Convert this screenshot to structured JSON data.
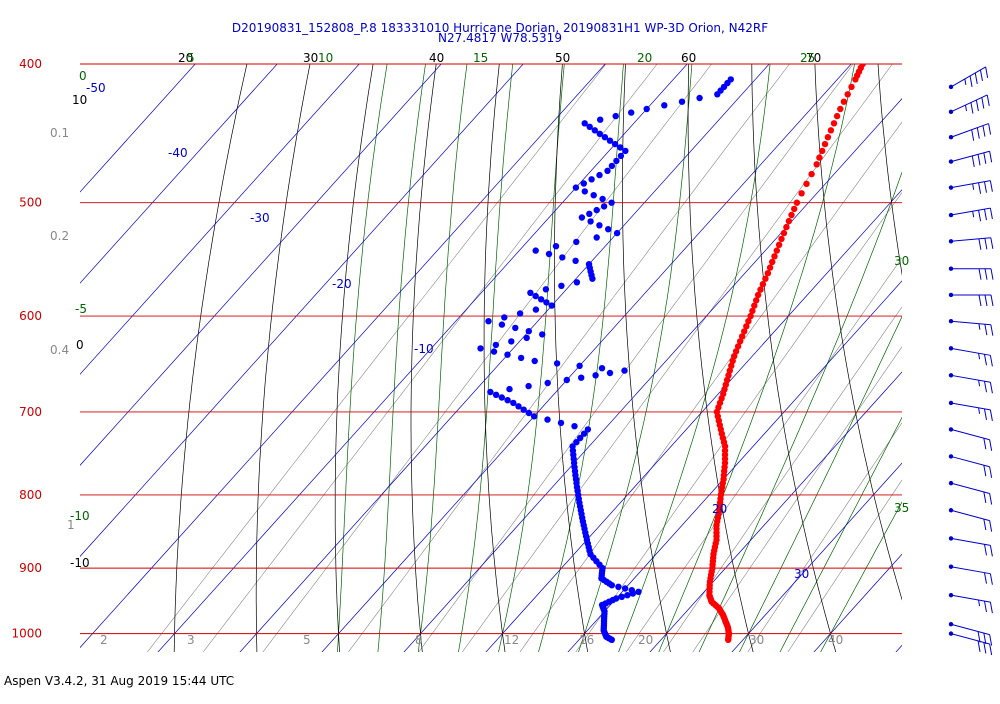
{
  "footer": "Aspen V3.4.2, 31 Aug 2019  15:44 UTC",
  "chart_data": {
    "type": "skew-t",
    "title": "D20190831_152808_P.8 183331010 Hurricane Dorian, 20190831H1 WP-3D Orion, N42RF",
    "subtitle": "N27.4817 W78.5319",
    "xlabel": "",
    "ylabel": "",
    "pressure_range_hPa": [
      400,
      1030
    ],
    "pressure_labels": [
      "400",
      "500",
      "600",
      "700",
      "800",
      "900",
      "1000"
    ],
    "pressure_levels_hPa": [
      400,
      500,
      600,
      700,
      800,
      900,
      1000
    ],
    "colors": {
      "isobar": "#cc0000",
      "isotherm": "#0000cc",
      "dry_adiabat": "#000000",
      "moist_adiabat": "#006600",
      "mixing_ratio": "#888888",
      "temperature": "#ff0000",
      "dewpoint": "#0000ff",
      "wind_barb": "#0000cc"
    },
    "isotherm_labels": [
      {
        "text": "-50",
        "value": -50
      },
      {
        "text": "-40",
        "value": -40
      },
      {
        "text": "-30",
        "value": -30
      },
      {
        "text": "-20",
        "value": -20
      },
      {
        "text": "-10",
        "value": -10
      },
      {
        "text": "20",
        "value": 20
      },
      {
        "text": "30",
        "value": 30
      }
    ],
    "dry_adiabat_top_labels": [
      "20",
      "30",
      "40",
      "50",
      "60",
      "70"
    ],
    "dry_adiabat_left_labels": [
      "10",
      "0",
      "-10"
    ],
    "moist_adiabat_top_labels": [
      "5",
      "10",
      "15",
      "20",
      "25"
    ],
    "moist_adiabat_left_labels": [
      "0",
      "-5",
      "-10"
    ],
    "moist_adiabat_right_labels": [
      "30",
      "35"
    ],
    "mixing_ratio_left_labels": [
      "0.1",
      "0.2",
      "0.4",
      "1"
    ],
    "mixing_ratio_bottom_labels": [
      "2",
      "3",
      "5",
      "8",
      "12",
      "16",
      "20",
      "30",
      "40"
    ],
    "series": [
      {
        "role": "temperature",
        "points": [
          [
            400,
            -18.6
          ],
          [
            410,
            -17.8
          ],
          [
            430,
            -16.4
          ],
          [
            450,
            -14.8
          ],
          [
            470,
            -13.2
          ],
          [
            500,
            -11.4
          ],
          [
            520,
            -10.0
          ],
          [
            540,
            -8.6
          ],
          [
            560,
            -7.2
          ],
          [
            580,
            -6.0
          ],
          [
            600,
            -4.6
          ],
          [
            620,
            -3.4
          ],
          [
            640,
            -2.2
          ],
          [
            660,
            -0.8
          ],
          [
            680,
            0.6
          ],
          [
            700,
            1.8
          ],
          [
            720,
            4.2
          ],
          [
            740,
            6.6
          ],
          [
            760,
            8.4
          ],
          [
            780,
            10.0
          ],
          [
            800,
            11.4
          ],
          [
            820,
            12.9
          ],
          [
            840,
            14.2
          ],
          [
            860,
            15.8
          ],
          [
            880,
            17.0
          ],
          [
            900,
            18.4
          ],
          [
            920,
            19.6
          ],
          [
            940,
            21.0
          ],
          [
            950,
            22.0
          ],
          [
            960,
            23.6
          ],
          [
            970,
            24.8
          ],
          [
            980,
            25.8
          ],
          [
            990,
            26.8
          ],
          [
            1000,
            27.6
          ],
          [
            1010,
            28.2
          ]
        ]
      },
      {
        "role": "dewpoint",
        "points": [
          [
            410,
            -33
          ],
          [
            420,
            -33
          ],
          [
            430,
            -40
          ],
          [
            440,
            -46
          ],
          [
            450,
            -42
          ],
          [
            460,
            -38
          ],
          [
            475,
            -38
          ],
          [
            488,
            -40
          ],
          [
            500,
            -34
          ],
          [
            512,
            -36
          ],
          [
            525,
            -30
          ],
          [
            540,
            -38
          ],
          [
            552,
            -30
          ],
          [
            565,
            -28
          ],
          [
            578,
            -34
          ],
          [
            590,
            -30
          ],
          [
            605,
            -36
          ],
          [
            618,
            -28
          ],
          [
            632,
            -34
          ],
          [
            645,
            -26
          ],
          [
            655,
            -14
          ],
          [
            665,
            -20
          ],
          [
            678,
            -28
          ],
          [
            690,
            -24
          ],
          [
            705,
            -20
          ],
          [
            720,
            -12
          ],
          [
            740,
            -12
          ],
          [
            760,
            -10
          ],
          [
            780,
            -8
          ],
          [
            800,
            -6
          ],
          [
            820,
            -4
          ],
          [
            840,
            -2
          ],
          [
            860,
            0
          ],
          [
            880,
            2
          ],
          [
            900,
            5
          ],
          [
            915,
            6
          ],
          [
            925,
            8
          ],
          [
            935,
            12
          ],
          [
            945,
            10
          ],
          [
            955,
            9
          ],
          [
            965,
            10
          ],
          [
            980,
            11
          ],
          [
            995,
            12
          ],
          [
            1005,
            13
          ],
          [
            1010,
            14
          ]
        ]
      }
    ],
    "wind_barbs": [
      {
        "p": 415,
        "speed_kt": 45,
        "dir": 240
      },
      {
        "p": 432,
        "speed_kt": 45,
        "dir": 245
      },
      {
        "p": 450,
        "speed_kt": 40,
        "dir": 250
      },
      {
        "p": 468,
        "speed_kt": 40,
        "dir": 255
      },
      {
        "p": 488,
        "speed_kt": 35,
        "dir": 260
      },
      {
        "p": 510,
        "speed_kt": 35,
        "dir": 260
      },
      {
        "p": 532,
        "speed_kt": 30,
        "dir": 265
      },
      {
        "p": 556,
        "speed_kt": 30,
        "dir": 270
      },
      {
        "p": 580,
        "speed_kt": 30,
        "dir": 270
      },
      {
        "p": 605,
        "speed_kt": 25,
        "dir": 275
      },
      {
        "p": 632,
        "speed_kt": 25,
        "dir": 280
      },
      {
        "p": 660,
        "speed_kt": 25,
        "dir": 280
      },
      {
        "p": 690,
        "speed_kt": 25,
        "dir": 280
      },
      {
        "p": 720,
        "speed_kt": 20,
        "dir": 285
      },
      {
        "p": 752,
        "speed_kt": 20,
        "dir": 285
      },
      {
        "p": 785,
        "speed_kt": 20,
        "dir": 285
      },
      {
        "p": 820,
        "speed_kt": 20,
        "dir": 285
      },
      {
        "p": 858,
        "speed_kt": 20,
        "dir": 280
      },
      {
        "p": 898,
        "speed_kt": 20,
        "dir": 280
      },
      {
        "p": 940,
        "speed_kt": 25,
        "dir": 280
      },
      {
        "p": 985,
        "speed_kt": 30,
        "dir": 285
      },
      {
        "p": 1000,
        "speed_kt": 30,
        "dir": 285
      }
    ]
  }
}
